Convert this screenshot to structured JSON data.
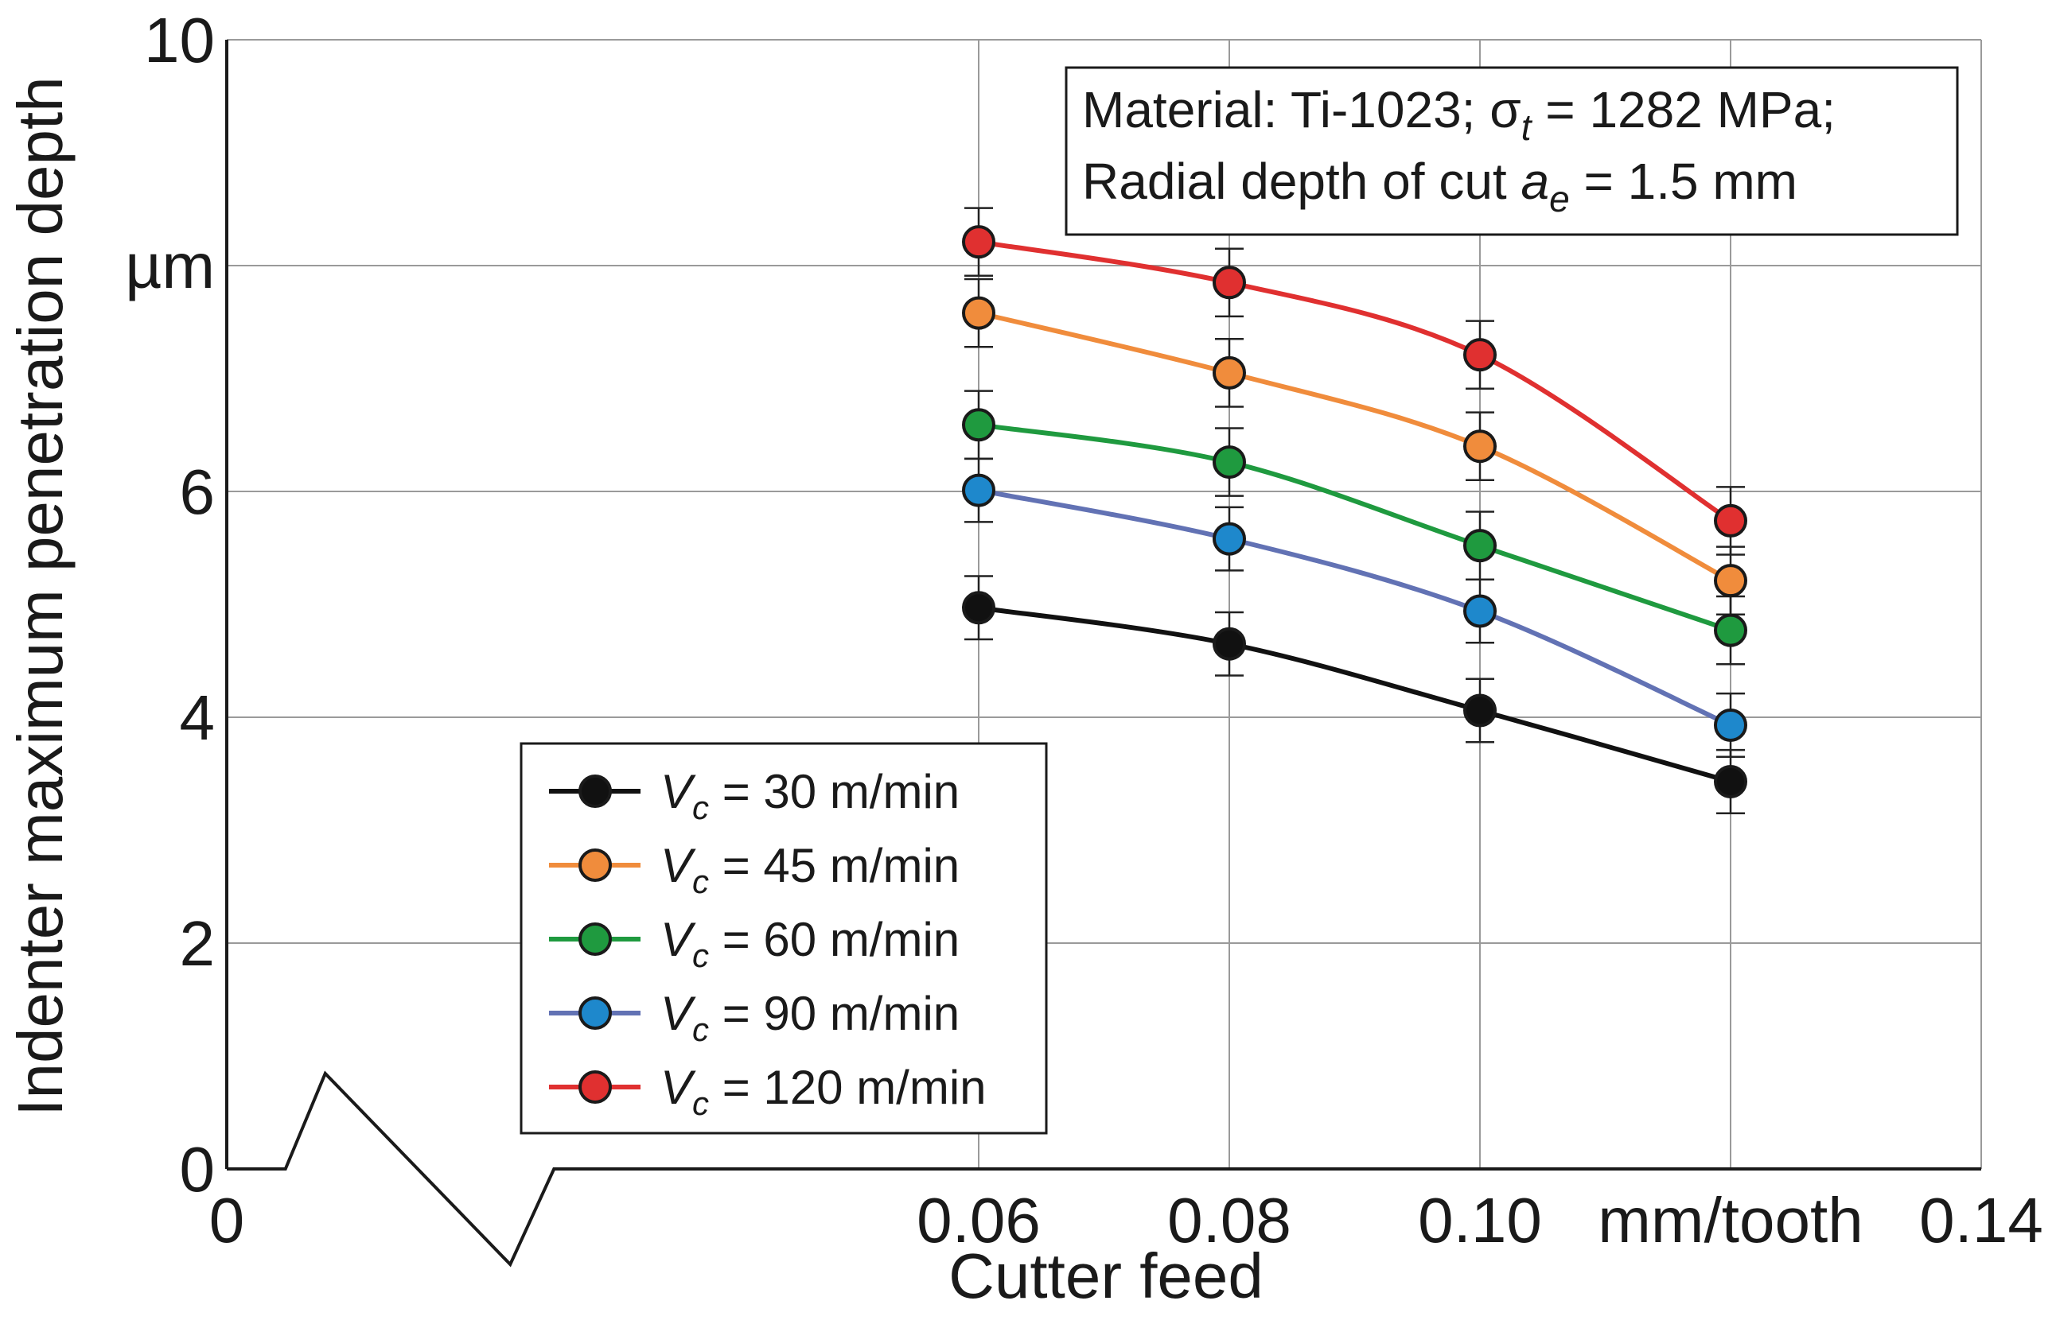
{
  "chart_data": {
    "type": "line",
    "xlabel": "Cutter feed",
    "ylabel": "Indenter maximum penetration depth",
    "x_unit": "mm/tooth",
    "y_unit": "µm",
    "xlim": [
      0,
      0.14
    ],
    "ylim": [
      0,
      10
    ],
    "x_ticks": [
      {
        "value": 0,
        "label": "0"
      },
      {
        "value": 0.06,
        "label": "0.06"
      },
      {
        "value": 0.08,
        "label": "0.08"
      },
      {
        "value": 0.1,
        "label": "0.10"
      },
      {
        "value": 0.12,
        "label": "mm/tooth"
      },
      {
        "value": 0.14,
        "label": "0.14"
      }
    ],
    "y_ticks": [
      {
        "value": 0,
        "label": "0"
      },
      {
        "value": 2,
        "label": "2"
      },
      {
        "value": 4,
        "label": "4"
      },
      {
        "value": 6,
        "label": "6"
      },
      {
        "value": 8,
        "label": "µm"
      },
      {
        "value": 10,
        "label": "10"
      }
    ],
    "axis_break_x": [
      0.005,
      0.015
    ],
    "grid": true,
    "x": [
      0.06,
      0.08,
      0.1,
      0.12
    ],
    "annotation": {
      "line1": "Material: Ti-1023; σ",
      "line1_sub": "t",
      "line1_rest": " = 1282 MPa;",
      "line2": "Radial depth of cut ",
      "line2_var": "a",
      "line2_sub": "e",
      "line2_rest": " = 1.5 mm"
    },
    "legend_position": "lower-left",
    "series": [
      {
        "name": "Vc = 30 m/min",
        "var": "V",
        "sub": "c",
        "label_rest": " = 30 m/min",
        "color": "#111111",
        "values": [
          4.97,
          4.65,
          4.06,
          3.43
        ],
        "errors": [
          0.28,
          0.28,
          0.28,
          0.28
        ]
      },
      {
        "name": "Vc = 45 m/min",
        "var": "V",
        "sub": "c",
        "label_rest": " = 45 m/min",
        "color": "#f08c3c",
        "values": [
          7.58,
          7.05,
          6.4,
          5.21
        ],
        "errors": [
          0.3,
          0.3,
          0.3,
          0.3
        ]
      },
      {
        "name": "Vc = 60 m/min",
        "var": "V",
        "sub": "c",
        "label_rest": " = 60 m/min",
        "color": "#1f9a3f",
        "values": [
          6.59,
          6.26,
          5.52,
          4.77
        ],
        "errors": [
          0.3,
          0.3,
          0.3,
          0.3
        ]
      },
      {
        "name": "Vc = 90 m/min",
        "var": "V",
        "sub": "c",
        "label_rest": " = 90 m/min",
        "color": "#1e88cc",
        "line_color": "#6272b4",
        "values": [
          6.01,
          5.58,
          4.94,
          3.93
        ],
        "errors": [
          0.28,
          0.28,
          0.28,
          0.28
        ]
      },
      {
        "name": "Vc = 120 m/min",
        "var": "V",
        "sub": "c",
        "label_rest": " = 120 m/min",
        "color": "#e03030",
        "values": [
          8.21,
          7.85,
          7.21,
          5.74
        ],
        "errors": [
          0.3,
          0.3,
          0.3,
          0.3
        ]
      }
    ]
  }
}
